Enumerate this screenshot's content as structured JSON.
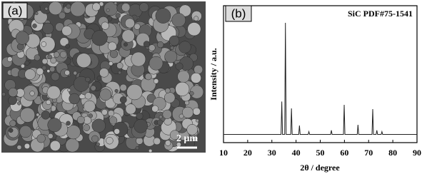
{
  "image_panel": {
    "label": "(a)",
    "scale_bar": "2 μm"
  },
  "chart_data": {
    "type": "line",
    "panel_label": "(b)",
    "annotation": "SiC PDF#75-1541",
    "x_label": "2θ / degree",
    "y_label": "Intensity / a.u.",
    "x": [
      10,
      33.8,
      34.1,
      34.4,
      35.3,
      35.6,
      35.9,
      37.8,
      38.1,
      38.4,
      41.1,
      41.4,
      41.7,
      45.0,
      45.3,
      45.6,
      54.3,
      54.6,
      54.9,
      59.6,
      59.9,
      60.2,
      65.3,
      65.6,
      65.9,
      71.4,
      71.7,
      72.0,
      73.1,
      73.4,
      73.7,
      75.2,
      75.5,
      75.8,
      90
    ],
    "values": [
      6,
      6,
      30,
      6,
      6,
      87.5,
      6,
      6,
      25,
      6,
      6,
      12.5,
      6,
      6,
      8,
      6,
      6,
      9,
      6,
      6,
      27.6,
      6,
      6,
      13,
      6,
      6,
      24.5,
      6,
      6,
      9,
      6,
      6,
      8,
      6,
      6
    ],
    "color": "#222222",
    "xlim": [
      10,
      90
    ],
    "xticks": [
      10,
      20,
      30,
      40,
      50,
      60,
      70,
      80,
      90
    ],
    "ylim": [
      0,
      100
    ]
  }
}
